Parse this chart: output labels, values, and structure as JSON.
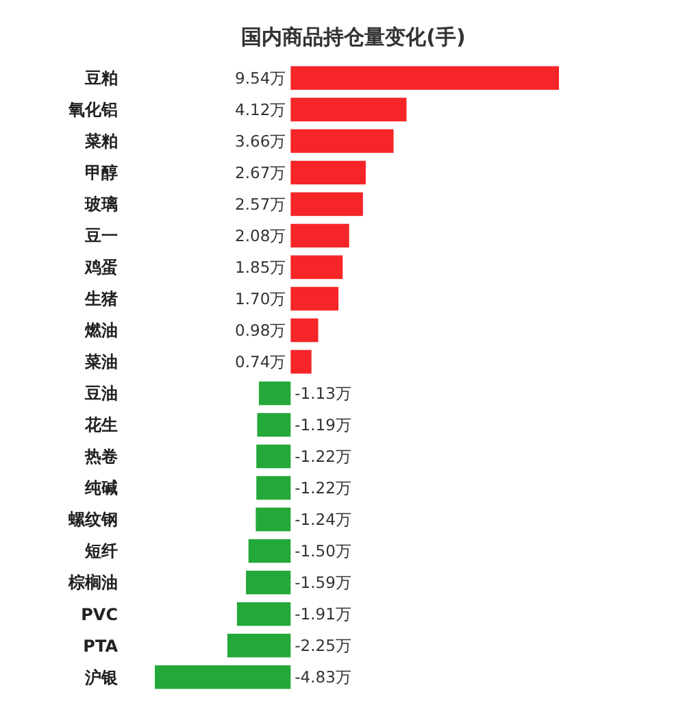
{
  "chart_data": {
    "type": "bar",
    "orientation": "horizontal",
    "title": "国内商品持仓量变化(手)",
    "categories": [
      "豆粕",
      "氧化铝",
      "菜粕",
      "甲醇",
      "玻璃",
      "豆一",
      "鸡蛋",
      "生猪",
      "燃油",
      "菜油",
      "豆油",
      "花生",
      "热卷",
      "纯碱",
      "螺纹钢",
      "短纤",
      "棕榈油",
      "PVC",
      "PTA",
      "沪银"
    ],
    "values": [
      9.54,
      4.12,
      3.66,
      2.67,
      2.57,
      2.08,
      1.85,
      1.7,
      0.98,
      0.74,
      -1.13,
      -1.19,
      -1.22,
      -1.22,
      -1.24,
      -1.5,
      -1.59,
      -1.91,
      -2.25,
      -4.83
    ],
    "value_labels": [
      "9.54万",
      "4.12万",
      "3.66万",
      "2.67万",
      "2.57万",
      "2.08万",
      "1.85万",
      "1.70万",
      "0.98万",
      "0.74万",
      "-1.13万",
      "-1.19万",
      "-1.22万",
      "-1.22万",
      "-1.24万",
      "-1.50万",
      "-1.59万",
      "-1.91万",
      "-2.25万",
      "-4.83万"
    ],
    "colors": [
      "#f52528",
      "#f52528",
      "#f52528",
      "#f52528",
      "#f52528",
      "#f52528",
      "#f52528",
      "#f52528",
      "#f52528",
      "#f52528",
      "#25a83a",
      "#25a83a",
      "#25a83a",
      "#25a83a",
      "#25a83a",
      "#25a83a",
      "#25a83a",
      "#25a83a",
      "#25a83a",
      "#25a83a"
    ]
  }
}
